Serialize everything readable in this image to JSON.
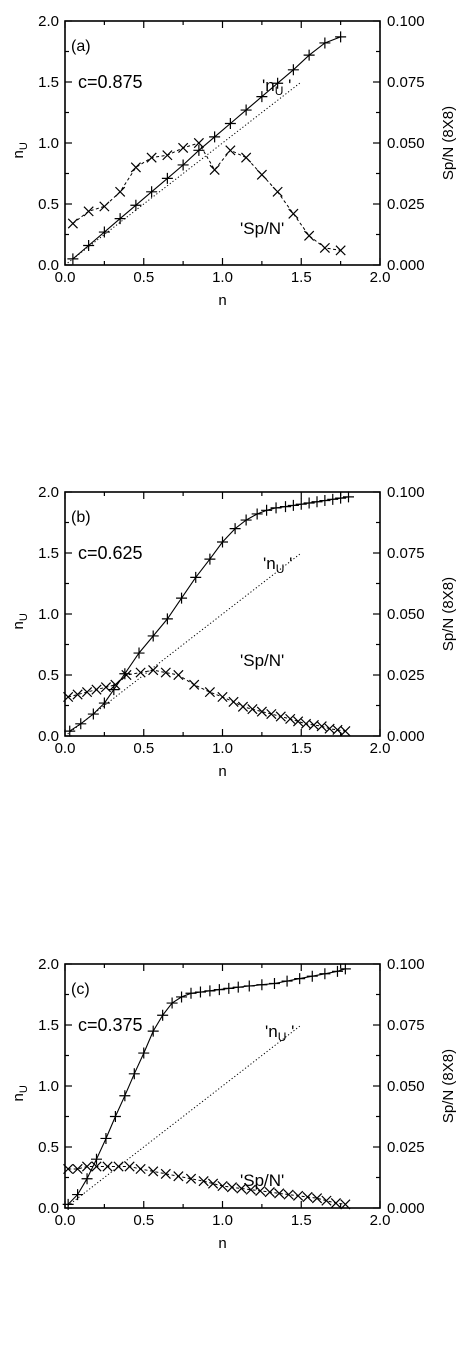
{
  "chart_data": [
    {
      "type": "line",
      "panel_label": "(a)",
      "param_label": "c=0.875",
      "xlabel": "n",
      "ylabel": "n_U",
      "y2label": "Sp/N (8X8)",
      "xlim": [
        0.0,
        2.0
      ],
      "ylim": [
        0.0,
        2.0
      ],
      "y2lim": [
        0.0,
        0.1
      ],
      "xticks": [
        "0.0",
        "0.5",
        "1.0",
        "1.5",
        "2.0"
      ],
      "yticks": [
        "0.0",
        "0.5",
        "1.0",
        "1.5",
        "2.0"
      ],
      "y2ticks": [
        "0.000",
        "0.025",
        "0.050",
        "0.075",
        "0.100"
      ],
      "reference_line": {
        "x": [
          0.0,
          1.5
        ],
        "y": [
          0.0,
          1.5
        ]
      },
      "series": [
        {
          "name": "'n_U'",
          "axis": "left",
          "marker": "plus",
          "x": [
            0.05,
            0.15,
            0.25,
            0.35,
            0.45,
            0.55,
            0.65,
            0.75,
            0.85,
            0.95,
            1.05,
            1.15,
            1.25,
            1.35,
            1.45,
            1.55,
            1.65,
            1.75
          ],
          "y": [
            0.05,
            0.16,
            0.27,
            0.38,
            0.49,
            0.6,
            0.71,
            0.82,
            0.94,
            1.05,
            1.16,
            1.27,
            1.38,
            1.49,
            1.6,
            1.72,
            1.82,
            1.87
          ]
        },
        {
          "name": "'Sp/N'",
          "axis": "right",
          "marker": "cross",
          "x": [
            0.05,
            0.15,
            0.25,
            0.35,
            0.45,
            0.55,
            0.65,
            0.75,
            0.85,
            0.95,
            1.05,
            1.15,
            1.25,
            1.35,
            1.45,
            1.55,
            1.65,
            1.75
          ],
          "y": [
            0.017,
            0.022,
            0.024,
            0.03,
            0.04,
            0.044,
            0.045,
            0.048,
            0.05,
            0.039,
            0.047,
            0.044,
            0.037,
            0.03,
            0.021,
            0.012,
            0.007,
            0.006
          ]
        }
      ]
    },
    {
      "type": "line",
      "panel_label": "(b)",
      "param_label": "c=0.625",
      "xlabel": "n",
      "ylabel": "n_U",
      "y2label": "Sp/N (8X8)",
      "xlim": [
        0.0,
        2.0
      ],
      "ylim": [
        0.0,
        2.0
      ],
      "y2lim": [
        0.0,
        0.1
      ],
      "xticks": [
        "0.0",
        "0.5",
        "1.0",
        "1.5",
        "2.0"
      ],
      "yticks": [
        "0.0",
        "0.5",
        "1.0",
        "1.5",
        "2.0"
      ],
      "y2ticks": [
        "0.000",
        "0.025",
        "0.050",
        "0.075",
        "0.100"
      ],
      "reference_line": {
        "x": [
          0.0,
          1.5
        ],
        "y": [
          0.0,
          1.5
        ]
      },
      "series": [
        {
          "name": "'n_U'",
          "axis": "left",
          "marker": "plus",
          "x": [
            0.03,
            0.1,
            0.18,
            0.25,
            0.31,
            0.38,
            0.47,
            0.56,
            0.65,
            0.74,
            0.83,
            0.92,
            1.0,
            1.08,
            1.15,
            1.22,
            1.28,
            1.34,
            1.4,
            1.45,
            1.5,
            1.55,
            1.6,
            1.65,
            1.7,
            1.75,
            1.8
          ],
          "y": [
            0.04,
            0.1,
            0.18,
            0.27,
            0.38,
            0.51,
            0.68,
            0.82,
            0.96,
            1.13,
            1.3,
            1.45,
            1.59,
            1.7,
            1.77,
            1.82,
            1.85,
            1.87,
            1.88,
            1.89,
            1.9,
            1.91,
            1.92,
            1.93,
            1.94,
            1.95,
            1.96
          ]
        },
        {
          "name": "'Sp/N'",
          "axis": "right",
          "marker": "cross",
          "x": [
            0.02,
            0.08,
            0.14,
            0.2,
            0.26,
            0.32,
            0.39,
            0.48,
            0.56,
            0.64,
            0.72,
            0.82,
            0.92,
            1.0,
            1.07,
            1.13,
            1.19,
            1.25,
            1.31,
            1.37,
            1.43,
            1.48,
            1.53,
            1.58,
            1.63,
            1.68,
            1.73,
            1.78
          ],
          "y": [
            0.016,
            0.017,
            0.018,
            0.019,
            0.02,
            0.021,
            0.025,
            0.026,
            0.027,
            0.026,
            0.025,
            0.021,
            0.018,
            0.016,
            0.014,
            0.012,
            0.011,
            0.01,
            0.009,
            0.008,
            0.007,
            0.006,
            0.005,
            0.0045,
            0.004,
            0.003,
            0.0025,
            0.002
          ]
        }
      ]
    },
    {
      "type": "line",
      "panel_label": "(c)",
      "param_label": "c=0.375",
      "xlabel": "n",
      "ylabel": "n_U",
      "y2label": "Sp/N (8X8)",
      "xlim": [
        0.0,
        2.0
      ],
      "ylim": [
        0.0,
        2.0
      ],
      "y2lim": [
        0.0,
        0.1
      ],
      "xticks": [
        "0.0",
        "0.5",
        "1.0",
        "1.5",
        "2.0"
      ],
      "yticks": [
        "0.0",
        "0.5",
        "1.0",
        "1.5",
        "2.0"
      ],
      "y2ticks": [
        "0.000",
        "0.025",
        "0.050",
        "0.075",
        "0.100"
      ],
      "reference_line": {
        "x": [
          0.0,
          1.5
        ],
        "y": [
          0.0,
          1.5
        ]
      },
      "series": [
        {
          "name": "'n_U'",
          "axis": "left",
          "marker": "plus",
          "x": [
            0.02,
            0.08,
            0.14,
            0.2,
            0.26,
            0.32,
            0.38,
            0.44,
            0.5,
            0.56,
            0.62,
            0.68,
            0.74,
            0.8,
            0.86,
            0.92,
            0.98,
            1.04,
            1.1,
            1.17,
            1.25,
            1.33,
            1.41,
            1.49,
            1.57,
            1.65,
            1.73,
            1.78
          ],
          "y": [
            0.03,
            0.11,
            0.24,
            0.4,
            0.57,
            0.75,
            0.92,
            1.1,
            1.27,
            1.45,
            1.58,
            1.68,
            1.73,
            1.76,
            1.77,
            1.78,
            1.79,
            1.8,
            1.81,
            1.82,
            1.83,
            1.84,
            1.86,
            1.88,
            1.9,
            1.92,
            1.94,
            1.96
          ]
        },
        {
          "name": "'Sp/N'",
          "axis": "right",
          "marker": "cross",
          "x": [
            0.02,
            0.08,
            0.14,
            0.2,
            0.27,
            0.34,
            0.41,
            0.48,
            0.56,
            0.64,
            0.72,
            0.8,
            0.88,
            0.94,
            1.0,
            1.06,
            1.12,
            1.18,
            1.24,
            1.3,
            1.36,
            1.42,
            1.48,
            1.54,
            1.6,
            1.66,
            1.72,
            1.78
          ],
          "y": [
            0.016,
            0.016,
            0.017,
            0.017,
            0.017,
            0.017,
            0.017,
            0.016,
            0.015,
            0.014,
            0.013,
            0.012,
            0.011,
            0.01,
            0.009,
            0.0085,
            0.008,
            0.0075,
            0.007,
            0.0065,
            0.006,
            0.0055,
            0.005,
            0.0045,
            0.004,
            0.003,
            0.002,
            0.0015
          ]
        }
      ]
    }
  ]
}
